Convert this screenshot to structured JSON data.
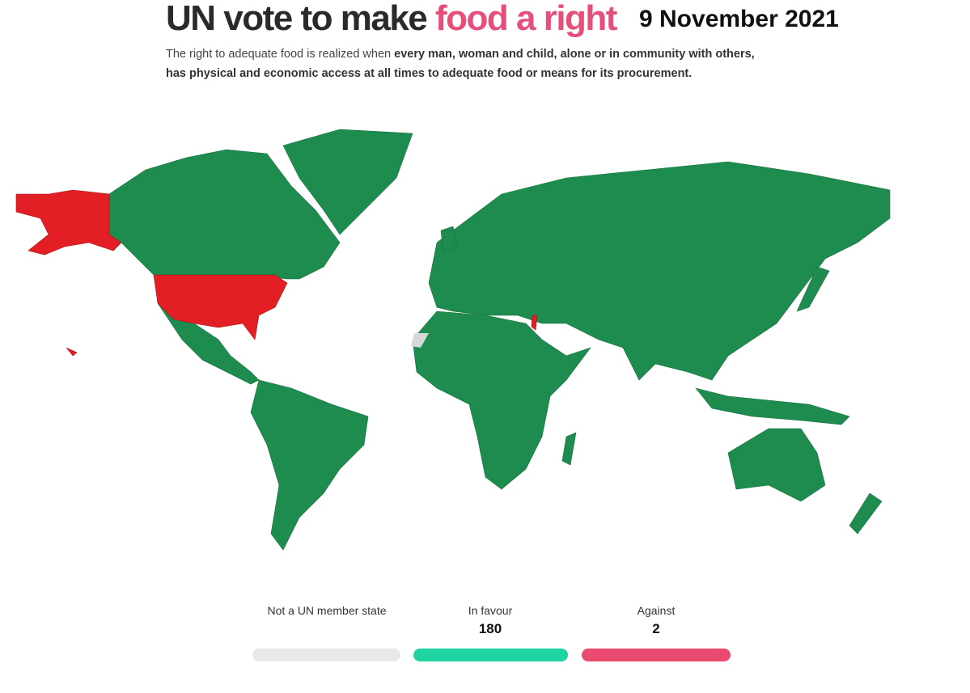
{
  "title": {
    "lead": "UN vote to make",
    "highlight": "food a right",
    "date": "9 November 2021"
  },
  "subtitle": {
    "lead": "The right to adequate food is realized when",
    "bold": "every man, woman and child, alone or in community with others, has physical and economic access at all times to adequate food or means for its procurement."
  },
  "legend": [
    {
      "label": "Not a UN member state"
    },
    {
      "label": "In favour",
      "count": 180
    },
    {
      "label": "Against",
      "count": 2
    }
  ]
}
